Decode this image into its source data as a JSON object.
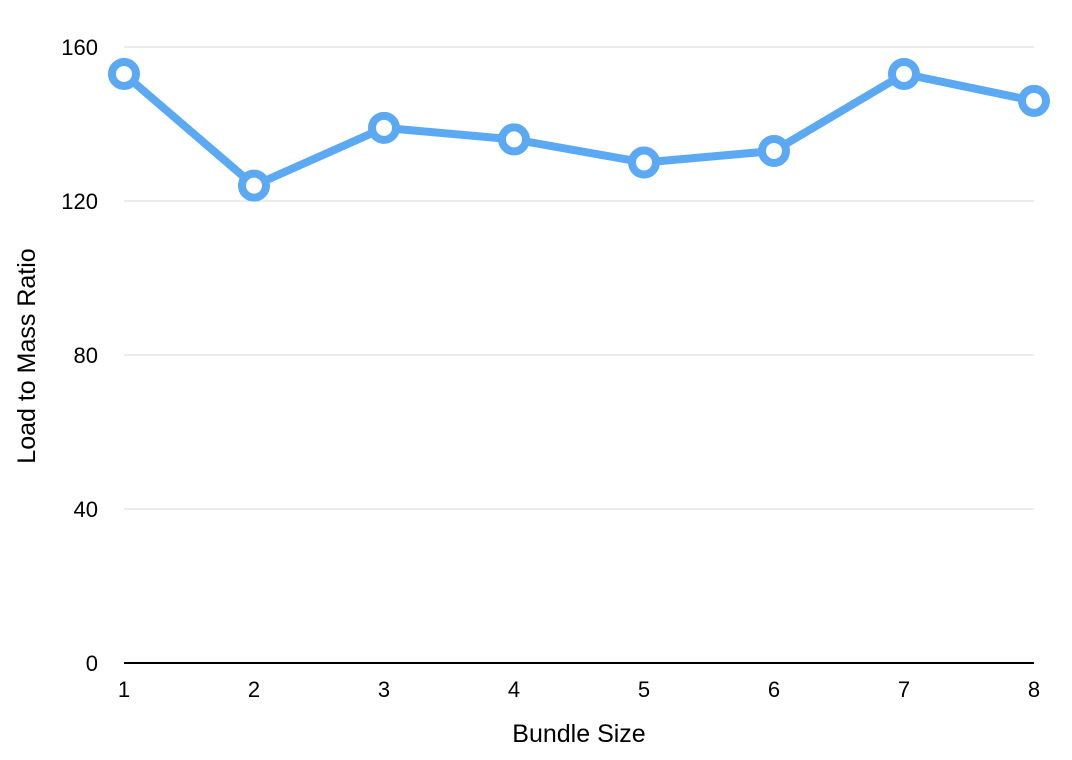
{
  "chart_data": {
    "type": "line",
    "title": "",
    "xlabel": "Bundle Size",
    "ylabel": "Load to Mass Ratio",
    "categories": [
      "1",
      "2",
      "3",
      "4",
      "5",
      "6",
      "7",
      "8"
    ],
    "series": [
      {
        "values": [
          153,
          124,
          139,
          136,
          130,
          133,
          153,
          146
        ],
        "color": "#5aa9f2"
      }
    ],
    "yticks": [
      "0",
      "40",
      "80",
      "120",
      "160"
    ],
    "ylim": [
      0,
      160
    ],
    "grid": true,
    "legend": "none"
  }
}
